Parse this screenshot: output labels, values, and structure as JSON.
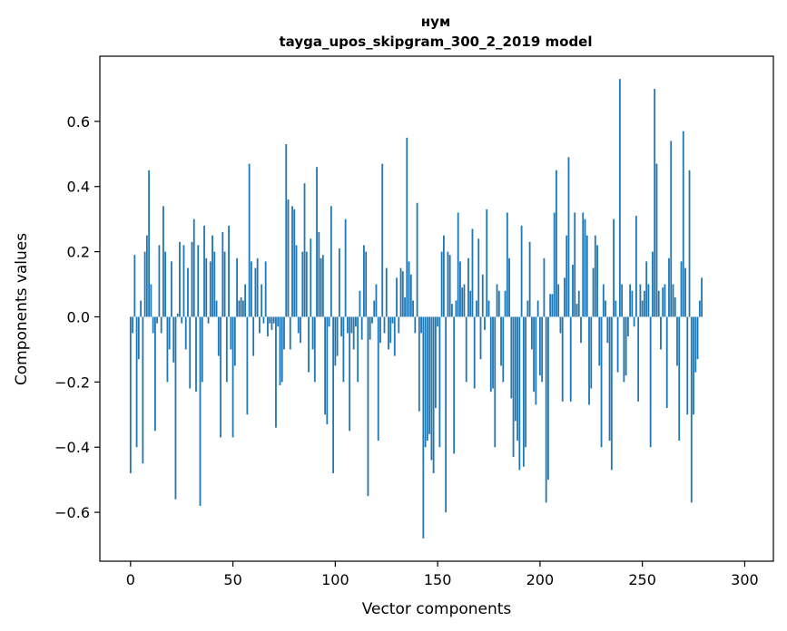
{
  "chart_data": {
    "type": "bar",
    "title": "нум",
    "subtitle": "tayga_upos_skipgram_300_2_2019 model",
    "xlabel": "Vector components",
    "ylabel": "Components values",
    "xlim": [
      -15,
      314
    ],
    "ylim": [
      -0.75,
      0.8
    ],
    "x_ticks": [
      0,
      50,
      100,
      150,
      200,
      250,
      300
    ],
    "y_ticks": [
      -0.6,
      -0.4,
      -0.2,
      0.0,
      0.2,
      0.4,
      0.6
    ],
    "y_tick_labels": [
      "−0.6",
      "−0.4",
      "−0.2",
      "0.0",
      "0.2",
      "0.4",
      "0.6"
    ],
    "bar_color": "#1f77b4",
    "grid": false,
    "values": [
      -0.48,
      -0.05,
      0.19,
      -0.4,
      -0.13,
      0.05,
      -0.45,
      0.2,
      0.25,
      0.45,
      0.1,
      -0.05,
      -0.35,
      -0.02,
      0.22,
      -0.05,
      0.34,
      0.2,
      -0.2,
      -0.1,
      0.17,
      -0.14,
      -0.56,
      0.01,
      0.23,
      -0.02,
      0.22,
      -0.1,
      0.15,
      -0.22,
      0.23,
      0.3,
      -0.23,
      0.22,
      -0.58,
      -0.2,
      0.28,
      0.18,
      -0.02,
      0.17,
      0.25,
      0.2,
      0.05,
      -0.12,
      -0.37,
      0.26,
      0.2,
      -0.2,
      0.28,
      -0.1,
      -0.37,
      -0.15,
      0.18,
      0.05,
      0.06,
      0.05,
      0.1,
      -0.3,
      0.47,
      0.17,
      -0.12,
      0.15,
      0.18,
      -0.05,
      0.1,
      -0.02,
      0.17,
      -0.06,
      -0.02,
      -0.04,
      -0.02,
      -0.34,
      -0.03,
      -0.21,
      -0.2,
      -0.1,
      0.53,
      0.36,
      -0.1,
      0.34,
      0.33,
      0.22,
      -0.05,
      -0.08,
      0.2,
      0.41,
      0.2,
      -0.17,
      0.24,
      -0.1,
      -0.2,
      0.46,
      0.26,
      0.18,
      0.19,
      -0.3,
      -0.33,
      -0.03,
      0.34,
      -0.48,
      -0.15,
      -0.12,
      0.21,
      -0.06,
      -0.2,
      0.3,
      -0.05,
      -0.35,
      -0.05,
      -0.1,
      -0.03,
      -0.2,
      0.08,
      -0.07,
      0.22,
      0.2,
      -0.55,
      -0.07,
      -0.02,
      0.05,
      0.1,
      -0.38,
      -0.08,
      0.47,
      -0.05,
      0.15,
      -0.1,
      -0.08,
      -0.02,
      -0.12,
      0.12,
      -0.05,
      0.15,
      0.14,
      0.06,
      0.55,
      0.17,
      0.13,
      0.05,
      -0.05,
      0.35,
      -0.29,
      -0.05,
      -0.68,
      -0.4,
      -0.38,
      -0.36,
      -0.44,
      -0.48,
      -0.28,
      -0.03,
      -0.4,
      0.2,
      0.25,
      -0.6,
      0.2,
      0.19,
      0.04,
      -0.42,
      0.05,
      0.32,
      0.17,
      0.09,
      0.1,
      -0.2,
      0.18,
      0.08,
      0.27,
      -0.22,
      0.05,
      0.24,
      -0.13,
      0.13,
      -0.04,
      0.33,
      0.05,
      -0.23,
      -0.22,
      -0.4,
      0.1,
      0.08,
      -0.15,
      -0.2,
      0.08,
      0.32,
      0.18,
      -0.25,
      -0.43,
      -0.32,
      -0.38,
      -0.47,
      0.28,
      -0.46,
      -0.4,
      0.05,
      0.23,
      -0.1,
      -0.23,
      -0.27,
      0.05,
      -0.18,
      -0.2,
      0.18,
      -0.57,
      -0.5,
      0.07,
      0.07,
      0.32,
      0.45,
      0.1,
      -0.05,
      -0.26,
      0.12,
      0.25,
      0.49,
      -0.26,
      0.16,
      0.32,
      0.04,
      0.08,
      -0.08,
      0.32,
      0.3,
      0.25,
      -0.27,
      -0.22,
      0.15,
      0.25,
      0.22,
      -0.15,
      -0.4,
      0.1,
      0.05,
      -0.08,
      -0.38,
      -0.47,
      0.3,
      0.05,
      -0.17,
      0.73,
      0.1,
      -0.2,
      -0.18,
      -0.06,
      0.1,
      0.08,
      -0.03,
      0.31,
      -0.26,
      0.1,
      0.05,
      0.08,
      0.17,
      0.1,
      -0.4,
      0.2,
      0.7,
      0.47,
      0.08,
      -0.1,
      0.09,
      0.1,
      -0.28,
      0.18,
      0.54,
      0.1,
      0.06,
      -0.15,
      -0.38,
      0.17,
      0.57,
      0.15,
      -0.3,
      0.45,
      -0.57,
      -0.3,
      -0.17,
      -0.13,
      0.05,
      0.12
    ]
  }
}
